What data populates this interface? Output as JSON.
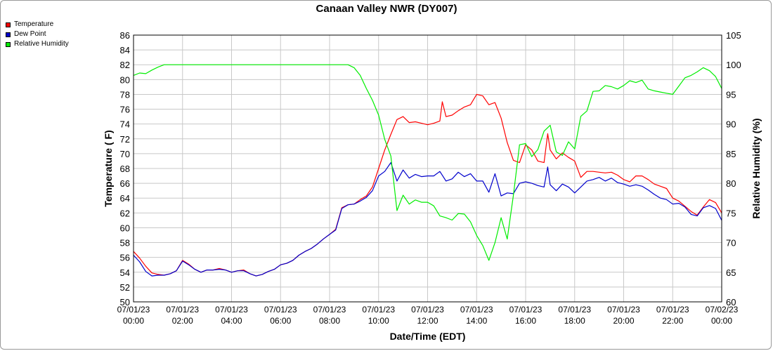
{
  "chart_data": {
    "type": "line",
    "title": "Canaan Valley NWR (DY007)",
    "xlabel": "Date/Time (EDT)",
    "ylabel": "Temperature ( F)",
    "y2label": "Relative Humidity (%)",
    "ylim": [
      50,
      86
    ],
    "y2lim": [
      60,
      105
    ],
    "xlim_hours": [
      0,
      24
    ],
    "yticks": [
      50,
      52,
      54,
      56,
      58,
      60,
      62,
      64,
      66,
      68,
      70,
      72,
      74,
      76,
      78,
      80,
      82,
      84,
      86
    ],
    "y2ticks": [
      60,
      65,
      70,
      75,
      80,
      85,
      90,
      95,
      100,
      105
    ],
    "xticks": [
      {
        "h": 0,
        "date": "07/01/23",
        "time": "00:00"
      },
      {
        "h": 2,
        "date": "07/01/23",
        "time": "02:00"
      },
      {
        "h": 4,
        "date": "07/01/23",
        "time": "04:00"
      },
      {
        "h": 6,
        "date": "07/01/23",
        "time": "06:00"
      },
      {
        "h": 8,
        "date": "07/01/23",
        "time": "08:00"
      },
      {
        "h": 10,
        "date": "07/01/23",
        "time": "10:00"
      },
      {
        "h": 12,
        "date": "07/01/23",
        "time": "12:00"
      },
      {
        "h": 14,
        "date": "07/01/23",
        "time": "14:00"
      },
      {
        "h": 16,
        "date": "07/01/23",
        "time": "16:00"
      },
      {
        "h": 18,
        "date": "07/01/23",
        "time": "18:00"
      },
      {
        "h": 20,
        "date": "07/01/23",
        "time": "20:00"
      },
      {
        "h": 22,
        "date": "07/01/23",
        "time": "22:00"
      },
      {
        "h": 24,
        "date": "07/02/23",
        "time": "00:00"
      }
    ],
    "grid": true,
    "legend_position": "top-left",
    "series": [
      {
        "name": "Temperature",
        "color": "#ff0000",
        "axis": "left",
        "points": [
          [
            0,
            56.8
          ],
          [
            0.25,
            55.9
          ],
          [
            0.5,
            54.8
          ],
          [
            0.75,
            53.9
          ],
          [
            1,
            53.7
          ],
          [
            1.25,
            53.6
          ],
          [
            1.5,
            53.8
          ],
          [
            1.75,
            54.2
          ],
          [
            2,
            55.6
          ],
          [
            2.25,
            55.1
          ],
          [
            2.5,
            54.4
          ],
          [
            2.75,
            54.0
          ],
          [
            3,
            54.3
          ],
          [
            3.25,
            54.3
          ],
          [
            3.5,
            54.5
          ],
          [
            3.75,
            54.3
          ],
          [
            4,
            54.0
          ],
          [
            4.25,
            54.2
          ],
          [
            4.5,
            54.3
          ],
          [
            4.75,
            53.8
          ],
          [
            5,
            53.5
          ],
          [
            5.25,
            53.7
          ],
          [
            5.5,
            54.1
          ],
          [
            5.75,
            54.4
          ],
          [
            6,
            55.0
          ],
          [
            6.25,
            55.2
          ],
          [
            6.5,
            55.6
          ],
          [
            6.75,
            56.3
          ],
          [
            7,
            56.8
          ],
          [
            7.25,
            57.2
          ],
          [
            7.5,
            57.8
          ],
          [
            7.75,
            58.5
          ],
          [
            8,
            59.1
          ],
          [
            8.25,
            59.8
          ],
          [
            8.5,
            62.7
          ],
          [
            8.75,
            63.1
          ],
          [
            9,
            63.2
          ],
          [
            9.25,
            63.8
          ],
          [
            9.5,
            64.3
          ],
          [
            9.75,
            65.5
          ],
          [
            10,
            68.0
          ],
          [
            10.25,
            70.5
          ],
          [
            10.5,
            72.6
          ],
          [
            10.75,
            74.6
          ],
          [
            11,
            75.0
          ],
          [
            11.25,
            74.2
          ],
          [
            11.5,
            74.3
          ],
          [
            11.75,
            74.1
          ],
          [
            12,
            73.9
          ],
          [
            12.25,
            74.1
          ],
          [
            12.5,
            74.4
          ],
          [
            12.6,
            77.0
          ],
          [
            12.75,
            75.0
          ],
          [
            13,
            75.2
          ],
          [
            13.25,
            75.8
          ],
          [
            13.5,
            76.3
          ],
          [
            13.75,
            76.6
          ],
          [
            14,
            78.0
          ],
          [
            14.25,
            77.8
          ],
          [
            14.5,
            76.6
          ],
          [
            14.75,
            76.9
          ],
          [
            15,
            74.8
          ],
          [
            15.25,
            71.5
          ],
          [
            15.5,
            69.1
          ],
          [
            15.75,
            68.8
          ],
          [
            16,
            71.2
          ],
          [
            16.25,
            70.5
          ],
          [
            16.5,
            69.0
          ],
          [
            16.75,
            68.8
          ],
          [
            16.9,
            72.7
          ],
          [
            17,
            70.5
          ],
          [
            17.25,
            69.3
          ],
          [
            17.5,
            70.1
          ],
          [
            17.75,
            69.5
          ],
          [
            18,
            69.0
          ],
          [
            18.25,
            66.8
          ],
          [
            18.5,
            67.6
          ],
          [
            18.75,
            67.6
          ],
          [
            19,
            67.5
          ],
          [
            19.25,
            67.4
          ],
          [
            19.5,
            67.5
          ],
          [
            19.75,
            67.1
          ],
          [
            20,
            66.5
          ],
          [
            20.25,
            66.2
          ],
          [
            20.5,
            67.0
          ],
          [
            20.75,
            67.0
          ],
          [
            21,
            66.5
          ],
          [
            21.25,
            65.9
          ],
          [
            21.5,
            65.6
          ],
          [
            21.75,
            65.3
          ],
          [
            22,
            64.0
          ],
          [
            22.25,
            63.6
          ],
          [
            22.5,
            62.9
          ],
          [
            22.75,
            62.2
          ],
          [
            23,
            61.7
          ],
          [
            23.25,
            62.8
          ],
          [
            23.5,
            63.8
          ],
          [
            23.75,
            63.4
          ],
          [
            24,
            62.0
          ]
        ]
      },
      {
        "name": "Dew Point",
        "color": "#0000cc",
        "axis": "left",
        "points": [
          [
            0,
            56.3
          ],
          [
            0.25,
            55.4
          ],
          [
            0.5,
            54.1
          ],
          [
            0.75,
            53.5
          ],
          [
            1,
            53.6
          ],
          [
            1.25,
            53.6
          ],
          [
            1.5,
            53.8
          ],
          [
            1.75,
            54.2
          ],
          [
            2,
            55.5
          ],
          [
            2.25,
            55.0
          ],
          [
            2.5,
            54.4
          ],
          [
            2.75,
            54.0
          ],
          [
            3,
            54.3
          ],
          [
            3.25,
            54.3
          ],
          [
            3.5,
            54.4
          ],
          [
            3.75,
            54.3
          ],
          [
            4,
            54.0
          ],
          [
            4.25,
            54.2
          ],
          [
            4.5,
            54.2
          ],
          [
            4.75,
            53.8
          ],
          [
            5,
            53.5
          ],
          [
            5.25,
            53.7
          ],
          [
            5.5,
            54.1
          ],
          [
            5.75,
            54.4
          ],
          [
            6,
            55.0
          ],
          [
            6.25,
            55.2
          ],
          [
            6.5,
            55.6
          ],
          [
            6.75,
            56.3
          ],
          [
            7,
            56.8
          ],
          [
            7.25,
            57.2
          ],
          [
            7.5,
            57.8
          ],
          [
            7.75,
            58.5
          ],
          [
            8,
            59.1
          ],
          [
            8.25,
            59.7
          ],
          [
            8.5,
            62.6
          ],
          [
            8.75,
            63.1
          ],
          [
            9,
            63.2
          ],
          [
            9.25,
            63.6
          ],
          [
            9.5,
            64.1
          ],
          [
            9.75,
            65.0
          ],
          [
            10,
            67.0
          ],
          [
            10.25,
            67.6
          ],
          [
            10.5,
            68.8
          ],
          [
            10.75,
            66.3
          ],
          [
            11,
            67.8
          ],
          [
            11.25,
            66.7
          ],
          [
            11.5,
            67.2
          ],
          [
            11.75,
            66.9
          ],
          [
            12,
            67.0
          ],
          [
            12.25,
            67.0
          ],
          [
            12.5,
            67.6
          ],
          [
            12.75,
            66.3
          ],
          [
            13,
            66.6
          ],
          [
            13.25,
            67.5
          ],
          [
            13.5,
            66.9
          ],
          [
            13.75,
            67.3
          ],
          [
            14,
            66.3
          ],
          [
            14.25,
            66.3
          ],
          [
            14.5,
            64.8
          ],
          [
            14.75,
            67.3
          ],
          [
            15,
            64.3
          ],
          [
            15.25,
            64.7
          ],
          [
            15.5,
            64.6
          ],
          [
            15.75,
            66.0
          ],
          [
            16,
            66.2
          ],
          [
            16.25,
            66.0
          ],
          [
            16.5,
            65.7
          ],
          [
            16.75,
            65.5
          ],
          [
            16.9,
            68.2
          ],
          [
            17,
            65.8
          ],
          [
            17.25,
            65.0
          ],
          [
            17.5,
            65.9
          ],
          [
            17.75,
            65.5
          ],
          [
            18,
            64.7
          ],
          [
            18.25,
            65.5
          ],
          [
            18.5,
            66.3
          ],
          [
            18.75,
            66.5
          ],
          [
            19,
            66.8
          ],
          [
            19.25,
            66.3
          ],
          [
            19.5,
            66.7
          ],
          [
            19.75,
            66.1
          ],
          [
            20,
            65.9
          ],
          [
            20.25,
            65.6
          ],
          [
            20.5,
            65.8
          ],
          [
            20.75,
            65.6
          ],
          [
            21,
            65.1
          ],
          [
            21.25,
            64.5
          ],
          [
            21.5,
            64.0
          ],
          [
            21.75,
            63.8
          ],
          [
            22,
            63.2
          ],
          [
            22.25,
            63.3
          ],
          [
            22.5,
            62.8
          ],
          [
            22.75,
            61.8
          ],
          [
            23,
            61.6
          ],
          [
            23.25,
            62.7
          ],
          [
            23.5,
            63.0
          ],
          [
            23.75,
            62.6
          ],
          [
            24,
            61.0
          ]
        ]
      },
      {
        "name": "Relative Humidity",
        "color": "#00ee00",
        "axis": "right",
        "points": [
          [
            0,
            98.2
          ],
          [
            0.25,
            98.6
          ],
          [
            0.5,
            98.5
          ],
          [
            0.75,
            99.1
          ],
          [
            1,
            99.6
          ],
          [
            1.25,
            100
          ],
          [
            2,
            100
          ],
          [
            4,
            100
          ],
          [
            6,
            100
          ],
          [
            8,
            100
          ],
          [
            8.75,
            100
          ],
          [
            9,
            99.5
          ],
          [
            9.25,
            98.2
          ],
          [
            9.5,
            96.0
          ],
          [
            9.75,
            94.0
          ],
          [
            10,
            91.5
          ],
          [
            10.25,
            87.4
          ],
          [
            10.5,
            84.6
          ],
          [
            10.75,
            75.4
          ],
          [
            11,
            78.0
          ],
          [
            11.25,
            76.5
          ],
          [
            11.5,
            77.2
          ],
          [
            11.75,
            76.8
          ],
          [
            12,
            76.8
          ],
          [
            12.25,
            76.2
          ],
          [
            12.5,
            74.5
          ],
          [
            12.75,
            74.2
          ],
          [
            13,
            73.8
          ],
          [
            13.25,
            74.9
          ],
          [
            13.5,
            74.8
          ],
          [
            13.75,
            73.5
          ],
          [
            14,
            71.2
          ],
          [
            14.25,
            69.5
          ],
          [
            14.5,
            67.0
          ],
          [
            14.75,
            70.0
          ],
          [
            15,
            74.2
          ],
          [
            15.25,
            70.6
          ],
          [
            15.5,
            78.0
          ],
          [
            15.75,
            86.5
          ],
          [
            16,
            86.7
          ],
          [
            16.25,
            84.5
          ],
          [
            16.5,
            85.7
          ],
          [
            16.75,
            88.8
          ],
          [
            17,
            89.8
          ],
          [
            17.25,
            85.3
          ],
          [
            17.5,
            84.7
          ],
          [
            17.75,
            87.0
          ],
          [
            18,
            85.8
          ],
          [
            18.25,
            91.3
          ],
          [
            18.5,
            92.2
          ],
          [
            18.75,
            95.5
          ],
          [
            19,
            95.6
          ],
          [
            19.25,
            96.5
          ],
          [
            19.5,
            96.3
          ],
          [
            19.75,
            95.9
          ],
          [
            20,
            96.5
          ],
          [
            20.25,
            97.3
          ],
          [
            20.5,
            97.0
          ],
          [
            20.75,
            97.4
          ],
          [
            21,
            95.9
          ],
          [
            21.25,
            95.6
          ],
          [
            21.5,
            95.4
          ],
          [
            21.75,
            95.2
          ],
          [
            22,
            95.0
          ],
          [
            22.25,
            96.4
          ],
          [
            22.5,
            97.8
          ],
          [
            22.75,
            98.2
          ],
          [
            23,
            98.8
          ],
          [
            23.25,
            99.5
          ],
          [
            23.5,
            99.0
          ],
          [
            23.75,
            98.0
          ],
          [
            24,
            96.0
          ]
        ]
      }
    ]
  }
}
